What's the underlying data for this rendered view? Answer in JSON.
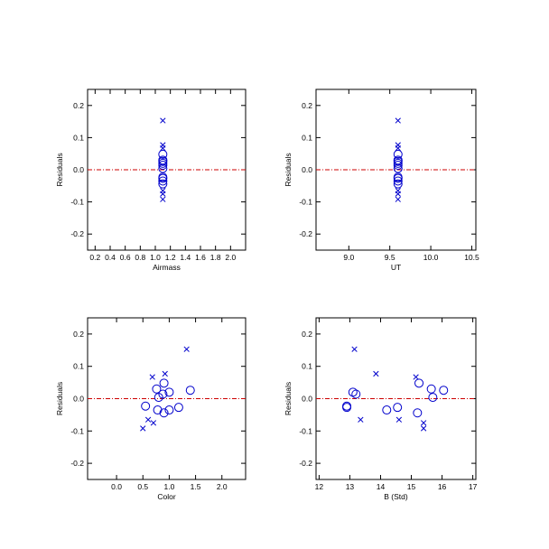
{
  "colors": {
    "marker": "#0000cc",
    "zero_line": "#cc0000",
    "frame": "#000000"
  },
  "chart_data": [
    {
      "type": "scatter",
      "xlabel": "Airmass",
      "ylabel": "Residuals",
      "xlim": [
        0.1,
        2.2
      ],
      "ylim": [
        -0.25,
        0.25
      ],
      "xticks": [
        "0.2",
        "0.4",
        "0.6",
        "0.8",
        "1.0",
        "1.2",
        "1.4",
        "1.6",
        "1.8",
        "2.0"
      ],
      "xtick_values": [
        0.2,
        0.4,
        0.6,
        0.8,
        1.0,
        1.2,
        1.4,
        1.6,
        1.8,
        2.0
      ],
      "yticks": [
        "-0.2",
        "-0.1",
        "0.0",
        "0.1",
        "0.2"
      ],
      "ytick_values": [
        -0.2,
        -0.1,
        0.0,
        0.1,
        0.2
      ],
      "zero_line": true,
      "series": [
        {
          "marker": "x",
          "points": [
            [
              1.1,
              0.153
            ],
            [
              1.1,
              0.077
            ],
            [
              1.1,
              0.067
            ],
            [
              1.1,
              -0.065
            ],
            [
              1.1,
              -0.075
            ],
            [
              1.1,
              -0.092
            ]
          ]
        },
        {
          "marker": "o",
          "points": [
            [
              1.1,
              0.048
            ],
            [
              1.1,
              0.03
            ],
            [
              1.1,
              0.026
            ],
            [
              1.1,
              0.02
            ],
            [
              1.1,
              0.014
            ],
            [
              1.1,
              0.004
            ],
            [
              1.1,
              -0.023
            ],
            [
              1.1,
              -0.027
            ],
            [
              1.1,
              -0.035
            ],
            [
              1.1,
              -0.044
            ]
          ]
        }
      ]
    },
    {
      "type": "scatter",
      "xlabel": "UT",
      "ylabel": "Residuals",
      "xlim": [
        8.6,
        10.55
      ],
      "ylim": [
        -0.25,
        0.25
      ],
      "xticks": [
        "9.0",
        "9.5",
        "10.0",
        "10.5"
      ],
      "xtick_values": [
        9.0,
        9.5,
        10.0,
        10.5
      ],
      "yticks": [
        "-0.2",
        "-0.1",
        "0.0",
        "0.1",
        "0.2"
      ],
      "ytick_values": [
        -0.2,
        -0.1,
        0.0,
        0.1,
        0.2
      ],
      "zero_line": true,
      "series": [
        {
          "marker": "x",
          "points": [
            [
              9.6,
              0.153
            ],
            [
              9.6,
              0.077
            ],
            [
              9.6,
              0.067
            ],
            [
              9.6,
              -0.065
            ],
            [
              9.6,
              -0.075
            ],
            [
              9.6,
              -0.092
            ]
          ]
        },
        {
          "marker": "o",
          "points": [
            [
              9.6,
              0.048
            ],
            [
              9.6,
              0.03
            ],
            [
              9.6,
              0.026
            ],
            [
              9.6,
              0.02
            ],
            [
              9.6,
              0.014
            ],
            [
              9.6,
              0.004
            ],
            [
              9.6,
              -0.023
            ],
            [
              9.6,
              -0.027
            ],
            [
              9.6,
              -0.035
            ],
            [
              9.6,
              -0.044
            ]
          ]
        }
      ]
    },
    {
      "type": "scatter",
      "xlabel": "Color",
      "ylabel": "Residuals",
      "xlim": [
        -0.55,
        2.45
      ],
      "ylim": [
        -0.25,
        0.25
      ],
      "xticks": [
        "0.0",
        "0.5",
        "1.0",
        "1.5",
        "2.0"
      ],
      "xtick_values": [
        0.0,
        0.5,
        1.0,
        1.5,
        2.0
      ],
      "yticks": [
        "-0.2",
        "-0.1",
        "0.0",
        "0.1",
        "0.2"
      ],
      "ytick_values": [
        -0.2,
        -0.1,
        0.0,
        0.1,
        0.2
      ],
      "zero_line": true,
      "series": [
        {
          "marker": "x",
          "points": [
            [
              1.33,
              0.153
            ],
            [
              0.92,
              0.077
            ],
            [
              0.68,
              0.067
            ],
            [
              0.6,
              -0.065
            ],
            [
              0.7,
              -0.075
            ],
            [
              0.5,
              -0.092
            ]
          ]
        },
        {
          "marker": "o",
          "points": [
            [
              0.9,
              0.048
            ],
            [
              0.76,
              0.03
            ],
            [
              1.4,
              0.026
            ],
            [
              1.0,
              0.02
            ],
            [
              0.88,
              0.014
            ],
            [
              0.8,
              0.004
            ],
            [
              0.55,
              -0.023
            ],
            [
              1.18,
              -0.027
            ],
            [
              1.0,
              -0.035
            ],
            [
              0.78,
              -0.035
            ],
            [
              0.9,
              -0.044
            ]
          ]
        }
      ]
    },
    {
      "type": "scatter",
      "xlabel": "B (Std)",
      "ylabel": "Residuals",
      "xlim": [
        11.9,
        17.1
      ],
      "ylim": [
        -0.25,
        0.25
      ],
      "xticks": [
        "12",
        "13",
        "14",
        "15",
        "16",
        "17"
      ],
      "xtick_values": [
        12,
        13,
        14,
        15,
        16,
        17
      ],
      "yticks": [
        "-0.2",
        "-0.1",
        "0.0",
        "0.1",
        "0.2"
      ],
      "ytick_values": [
        -0.2,
        -0.1,
        0.0,
        0.1,
        0.2
      ],
      "zero_line": true,
      "series": [
        {
          "marker": "x",
          "points": [
            [
              13.15,
              0.153
            ],
            [
              13.85,
              0.077
            ],
            [
              15.15,
              0.067
            ],
            [
              13.35,
              -0.065
            ],
            [
              14.6,
              -0.065
            ],
            [
              15.4,
              -0.075
            ],
            [
              15.4,
              -0.092
            ]
          ]
        },
        {
          "marker": "o",
          "points": [
            [
              15.25,
              0.048
            ],
            [
              15.65,
              0.03
            ],
            [
              16.05,
              0.026
            ],
            [
              13.1,
              0.02
            ],
            [
              13.2,
              0.014
            ],
            [
              15.7,
              0.004
            ],
            [
              12.9,
              -0.023
            ],
            [
              12.9,
              -0.027
            ],
            [
              14.55,
              -0.027
            ],
            [
              14.2,
              -0.035
            ],
            [
              15.2,
              -0.044
            ]
          ]
        }
      ]
    }
  ]
}
